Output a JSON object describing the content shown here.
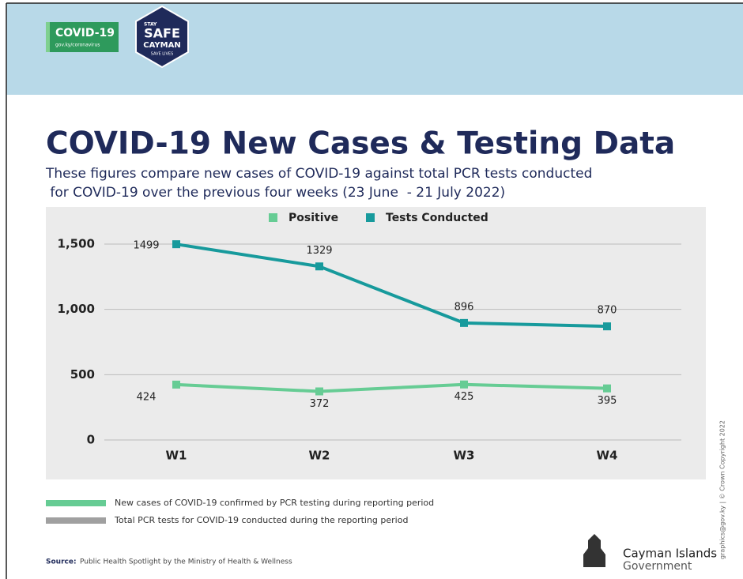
{
  "header": {
    "badge": "COVID-19",
    "badge_url": "gov.ky/coronavirus",
    "stay": "STAY",
    "safe": "SAFE",
    "cayman": "CAYMAN",
    "save": "SAVE LIVES"
  },
  "chart_data": {
    "type": "line",
    "title": "COVID-19 New Cases & Testing Data",
    "subtitle": [
      "These figures compare new cases of COVID-19 against total PCR tests conducted",
      " for COVID-19 over the previous four weeks (23 June  - 21 July 2022)"
    ],
    "categories": [
      "W1",
      "W2",
      "W3",
      "W4"
    ],
    "series": [
      {
        "name": "Positive",
        "color": "#66cc94",
        "values": [
          424,
          372,
          425,
          395
        ]
      },
      {
        "name": "Tests Conducted",
        "color": "#179a9c",
        "values": [
          1499,
          1329,
          896,
          870
        ]
      }
    ],
    "ylim": [
      0,
      1500
    ],
    "yticks": [
      0,
      500,
      {
        "value": 1000,
        "label": "1,000"
      },
      {
        "value": 1500,
        "label": "1,500"
      }
    ],
    "grid": true,
    "legend": "top"
  },
  "footer": {
    "notes": [
      {
        "text": "New cases  of COVID-19 confirmed by PCR testing  during reporting period",
        "color": "#66cc94"
      },
      {
        "text": "Total PCR tests for COVID-19 conducted during the reporting period",
        "color": "#a0a0a0"
      }
    ],
    "source_label": "Source:",
    "source": "Public Health Spotlight by the Ministry of Health & Wellness",
    "gov_line1": "Cayman Islands",
    "gov_line2": "Government",
    "copyright": "graphics@gov.ky | © Crown Copyright 2022"
  }
}
